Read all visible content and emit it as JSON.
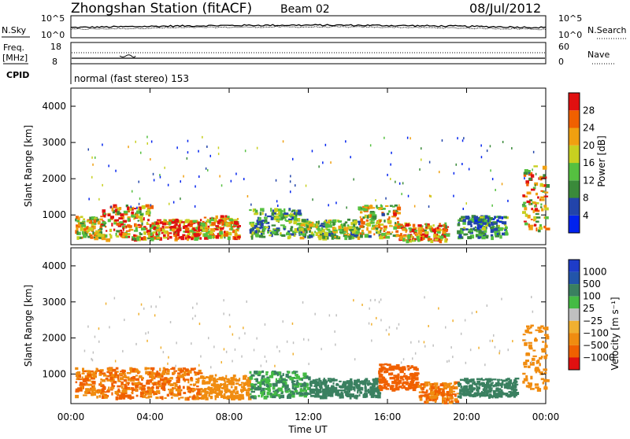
{
  "header": {
    "station": "Zhongshan Station (fitACF)",
    "beam": "Beam 02",
    "date": "08/Jul/2012"
  },
  "noise_panel": {
    "left_label": "N.Sky",
    "right_label": "N.Search",
    "left_ticks": [
      "10^5",
      "10^0"
    ],
    "right_ticks": [
      "10^5",
      "10^0"
    ]
  },
  "freq_panel": {
    "left_label": "Freq.",
    "left_unit": "[MHz]",
    "left_ticks": [
      "18",
      "8"
    ],
    "right_label": "Nave",
    "right_ticks": [
      "60",
      "0"
    ]
  },
  "cpid": {
    "label": "CPID",
    "text": "normal (fast stereo) 153"
  },
  "x_axis": {
    "label": "Time UT",
    "ticks": [
      "00:00",
      "04:00",
      "08:00",
      "12:00",
      "16:00",
      "20:00",
      "00:00"
    ]
  },
  "colors": {
    "power": [
      "#0022ee",
      "#2244aa",
      "#3a8a3a",
      "#55c040",
      "#c8d020",
      "#f0a010",
      "#f06000",
      "#e01010"
    ],
    "velocity": [
      "#e01010",
      "#f06000",
      "#f08c10",
      "#f0b030",
      "#c0c0c0",
      "#44bb44",
      "#3a8060",
      "#2255aa",
      "#1e3cc8"
    ]
  },
  "chart_data": [
    {
      "type": "heatmap",
      "name": "power",
      "ylabel": "Slant Range [km]",
      "xlabel": "Time UT",
      "x_ticks": [
        "00:00",
        "04:00",
        "08:00",
        "12:00",
        "16:00",
        "20:00",
        "00:00"
      ],
      "y_ticks": [
        "1000",
        "2000",
        "3000",
        "4000"
      ],
      "xlim_hours": [
        0,
        24
      ],
      "ylim_km": [
        180,
        4500
      ],
      "colorbar": {
        "label": "Power [dB]",
        "ticks": [
          "4",
          "8",
          "12",
          "16",
          "20",
          "24",
          "28"
        ],
        "range": [
          0,
          32
        ]
      },
      "echo_regions": [
        {
          "t": [
            0.2,
            1.5
          ],
          "r": [
            400,
            1000
          ],
          "v": 18
        },
        {
          "t": [
            1.5,
            4.0
          ],
          "r": [
            350,
            1300
          ],
          "v": 22
        },
        {
          "t": [
            4.0,
            6.5
          ],
          "r": [
            350,
            900
          ],
          "v": 26
        },
        {
          "t": [
            6.5,
            8.5
          ],
          "r": [
            400,
            1000
          ],
          "v": 22
        },
        {
          "t": [
            9.0,
            11.5
          ],
          "r": [
            400,
            1200
          ],
          "v": 12
        },
        {
          "t": [
            11.5,
            14.5
          ],
          "r": [
            400,
            900
          ],
          "v": 14
        },
        {
          "t": [
            14.5,
            16.5
          ],
          "r": [
            400,
            1300
          ],
          "v": 18
        },
        {
          "t": [
            16.5,
            19.0
          ],
          "r": [
            300,
            800
          ],
          "v": 24
        },
        {
          "t": [
            19.5,
            22.0
          ],
          "r": [
            400,
            1000
          ],
          "v": 10
        },
        {
          "t": [
            22.8,
            24.0
          ],
          "r": [
            600,
            2400
          ],
          "v": 20
        }
      ]
    },
    {
      "type": "heatmap",
      "name": "velocity",
      "ylabel": "Slant Range [km]",
      "xlabel": "Time UT",
      "x_ticks": [
        "00:00",
        "04:00",
        "08:00",
        "12:00",
        "16:00",
        "20:00",
        "00:00"
      ],
      "y_ticks": [
        "1000",
        "2000",
        "3000",
        "4000"
      ],
      "xlim_hours": [
        0,
        24
      ],
      "ylim_km": [
        180,
        4500
      ],
      "colorbar": {
        "label": "Velocity [m s⁻¹]",
        "ticks": [
          "1000",
          "500",
          "100",
          "25",
          "−25",
          "−100",
          "−500",
          "−1000"
        ]
      },
      "echo_regions": [
        {
          "t": [
            0.2,
            2.0
          ],
          "r": [
            400,
            1200
          ],
          "v": -100
        },
        {
          "t": [
            2.0,
            6.5
          ],
          "r": [
            350,
            1200
          ],
          "v": -100
        },
        {
          "t": [
            6.5,
            9.0
          ],
          "r": [
            350,
            1000
          ],
          "v": -50
        },
        {
          "t": [
            9.0,
            12.0
          ],
          "r": [
            400,
            1100
          ],
          "v": 100
        },
        {
          "t": [
            12.0,
            15.5
          ],
          "r": [
            400,
            900
          ],
          "v": 200
        },
        {
          "t": [
            15.5,
            17.5
          ],
          "r": [
            600,
            1300
          ],
          "v": -300
        },
        {
          "t": [
            17.5,
            19.5
          ],
          "r": [
            250,
            800
          ],
          "v": -100
        },
        {
          "t": [
            19.5,
            22.5
          ],
          "r": [
            400,
            900
          ],
          "v": 200
        },
        {
          "t": [
            22.8,
            24.0
          ],
          "r": [
            600,
            2400
          ],
          "v": -50
        }
      ]
    }
  ]
}
